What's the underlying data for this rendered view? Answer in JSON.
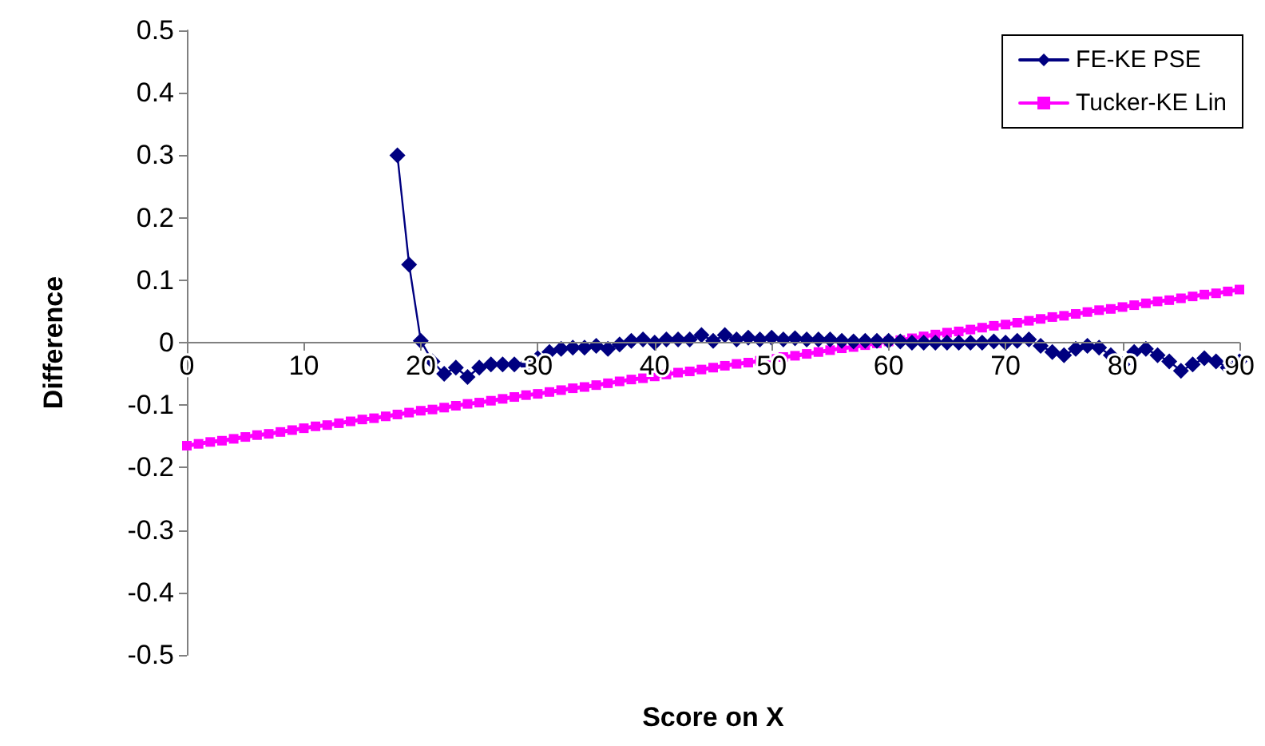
{
  "chart_data": {
    "type": "line",
    "xlabel": "Score on X",
    "ylabel": "Difference",
    "xlim": [
      0,
      90
    ],
    "xticks": [
      0,
      10,
      20,
      30,
      40,
      50,
      60,
      70,
      80,
      90
    ],
    "ylim": [
      -0.5,
      0.5
    ],
    "yticks": [
      -0.5,
      -0.4,
      -0.3,
      -0.2,
      -0.1,
      0,
      0.1,
      0.2,
      0.3,
      0.4,
      0.5
    ],
    "grid": false,
    "legend": "top right",
    "line_style": "solid",
    "series": [
      {
        "name": "FE-KE PSE",
        "color": "#000080",
        "marker": "diamond",
        "x": [
          18,
          19,
          20,
          21,
          22,
          23,
          24,
          25,
          26,
          27,
          28,
          29,
          30,
          31,
          32,
          33,
          34,
          35,
          36,
          37,
          38,
          39,
          40,
          41,
          42,
          43,
          44,
          45,
          46,
          47,
          48,
          49,
          50,
          51,
          52,
          53,
          54,
          55,
          56,
          57,
          58,
          59,
          60,
          61,
          62,
          63,
          64,
          65,
          66,
          67,
          68,
          69,
          70,
          71,
          72,
          73,
          74,
          75,
          76,
          77,
          78,
          79,
          80,
          81,
          82,
          83,
          84,
          85,
          86,
          87,
          88,
          89,
          90
        ],
        "values": [
          0.3,
          0.125,
          0.003,
          -0.03,
          -0.05,
          -0.04,
          -0.055,
          -0.04,
          -0.035,
          -0.035,
          -0.035,
          -0.035,
          -0.025,
          -0.015,
          -0.01,
          -0.008,
          -0.008,
          -0.005,
          -0.01,
          -0.003,
          0.003,
          0.005,
          0,
          0.005,
          0.005,
          0.005,
          0.012,
          0.003,
          0.012,
          0.005,
          0.008,
          0.005,
          0.008,
          0.005,
          0.007,
          0.005,
          0.005,
          0.005,
          0.003,
          0.002,
          0.003,
          0.003,
          0.003,
          0.002,
          0,
          0,
          0,
          0,
          0,
          0,
          0,
          0.002,
          0,
          0.003,
          0.005,
          -0.005,
          -0.015,
          -0.02,
          -0.01,
          -0.005,
          -0.008,
          -0.02,
          -0.035,
          -0.015,
          -0.01,
          -0.02,
          -0.03,
          -0.045,
          -0.035,
          -0.025,
          -0.03,
          -0.04,
          -0.03
        ]
      },
      {
        "name": "Tucker-KE Lin",
        "color": "#ff00ff",
        "marker": "square",
        "x": [
          0,
          1,
          2,
          3,
          4,
          5,
          6,
          7,
          8,
          9,
          10,
          11,
          12,
          13,
          14,
          15,
          16,
          17,
          18,
          19,
          20,
          21,
          22,
          23,
          24,
          25,
          26,
          27,
          28,
          29,
          30,
          31,
          32,
          33,
          34,
          35,
          36,
          37,
          38,
          39,
          40,
          41,
          42,
          43,
          44,
          45,
          46,
          47,
          48,
          49,
          50,
          51,
          52,
          53,
          54,
          55,
          56,
          57,
          58,
          59,
          60,
          61,
          62,
          63,
          64,
          65,
          66,
          67,
          68,
          69,
          70,
          71,
          72,
          73,
          74,
          75,
          76,
          77,
          78,
          79,
          80,
          81,
          82,
          83,
          84,
          85,
          86,
          87,
          88,
          89,
          90
        ],
        "values": [
          -0.165,
          -0.162,
          -0.159,
          -0.157,
          -0.154,
          -0.151,
          -0.148,
          -0.146,
          -0.143,
          -0.14,
          -0.137,
          -0.134,
          -0.132,
          -0.129,
          -0.126,
          -0.123,
          -0.121,
          -0.118,
          -0.115,
          -0.112,
          -0.109,
          -0.107,
          -0.104,
          -0.101,
          -0.098,
          -0.096,
          -0.093,
          -0.09,
          -0.087,
          -0.084,
          -0.082,
          -0.079,
          -0.076,
          -0.073,
          -0.071,
          -0.068,
          -0.065,
          -0.062,
          -0.059,
          -0.057,
          -0.054,
          -0.051,
          -0.048,
          -0.046,
          -0.043,
          -0.04,
          -0.037,
          -0.034,
          -0.032,
          -0.029,
          -0.026,
          -0.023,
          -0.021,
          -0.018,
          -0.015,
          -0.012,
          -0.009,
          -0.007,
          -0.004,
          -0.001,
          0.002,
          0.004,
          0.007,
          0.01,
          0.013,
          0.016,
          0.018,
          0.021,
          0.024,
          0.027,
          0.029,
          0.032,
          0.035,
          0.038,
          0.041,
          0.043,
          0.046,
          0.049,
          0.052,
          0.054,
          0.057,
          0.06,
          0.063,
          0.066,
          0.068,
          0.071,
          0.074,
          0.077,
          0.079,
          0.082,
          0.085
        ]
      }
    ]
  }
}
